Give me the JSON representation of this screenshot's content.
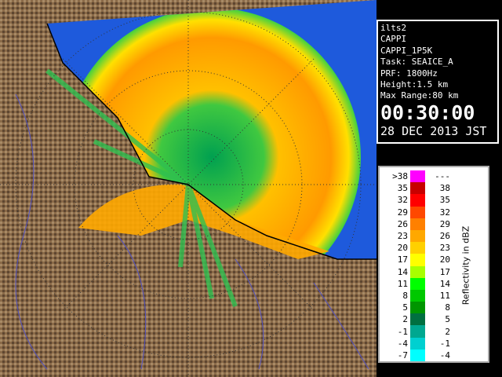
{
  "info": {
    "lines": [
      "ilts2",
      "CAPPI",
      "CAPPI_1P5K",
      "Task: SEAICE_A",
      "PRF: 1800Hz",
      "Height:1.5 km",
      "Max Range:80 km"
    ],
    "time": "00:30:00",
    "date": "28 DEC 2013 JST"
  },
  "legend": {
    "title": "Reflectivity in dBZ",
    "rows": [
      {
        "low": ">38",
        "high": "---",
        "color": "#ff00ff"
      },
      {
        "low": "35",
        "high": "38",
        "color": "#c80000"
      },
      {
        "low": "32",
        "high": "35",
        "color": "#ff0000"
      },
      {
        "low": "29",
        "high": "32",
        "color": "#ff4800"
      },
      {
        "low": "26",
        "high": "29",
        "color": "#ff8000"
      },
      {
        "low": "23",
        "high": "26",
        "color": "#ffa800"
      },
      {
        "low": "20",
        "high": "23",
        "color": "#ffd000"
      },
      {
        "low": "17",
        "high": "20",
        "color": "#ffff00"
      },
      {
        "low": "14",
        "high": "17",
        "color": "#a8ff00"
      },
      {
        "low": "11",
        "high": "14",
        "color": "#00ff00"
      },
      {
        "low": "8",
        "high": "11",
        "color": "#00c800"
      },
      {
        "low": "5",
        "high": "8",
        "color": "#009600"
      },
      {
        "low": "2",
        "high": "5",
        "color": "#007040"
      },
      {
        "low": "-1",
        "high": "2",
        "color": "#00a890"
      },
      {
        "low": "-4",
        "high": "-1",
        "color": "#00d0d0"
      },
      {
        "low": "-7",
        "high": "-4",
        "color": "#00ffff"
      }
    ]
  }
}
